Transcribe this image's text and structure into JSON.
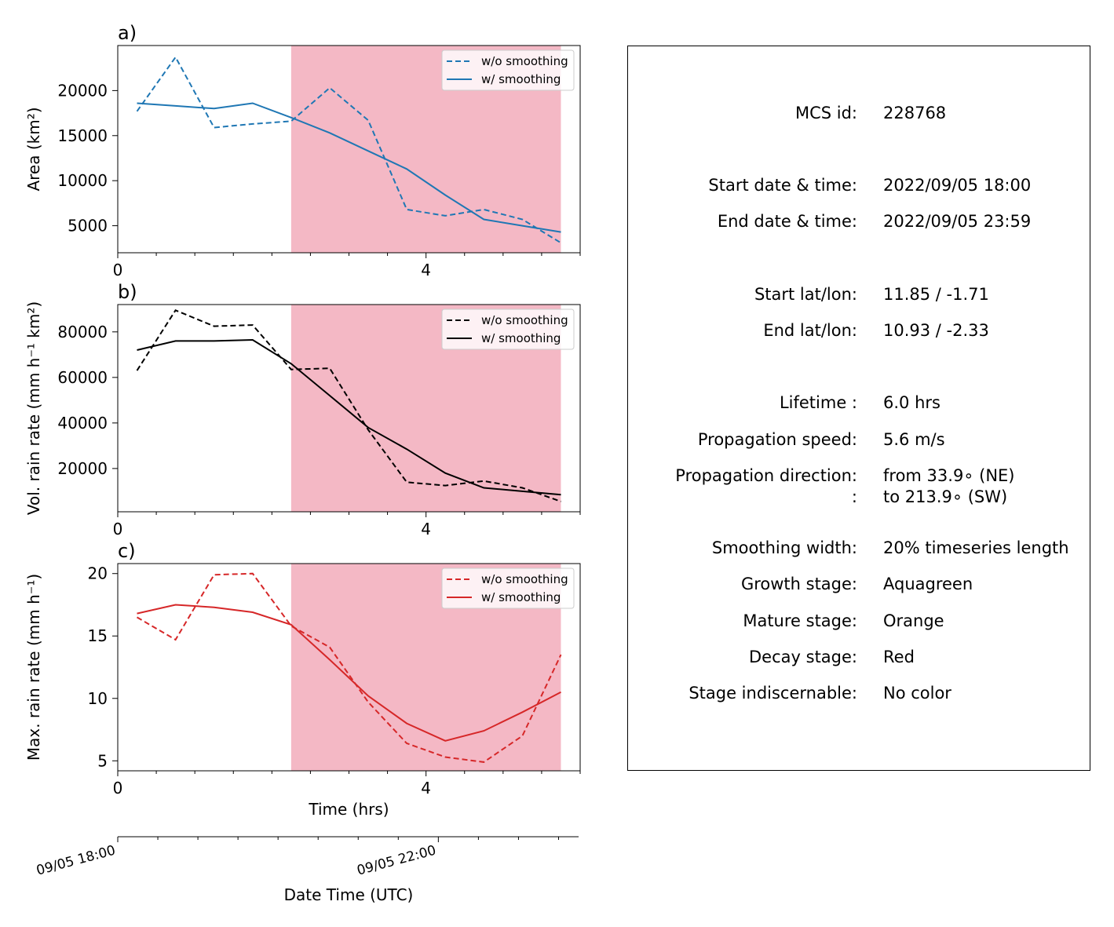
{
  "chart_data": [
    {
      "type": "line",
      "panel_label": "a)",
      "ylabel": "Area  (km²)",
      "xlabel": "",
      "x": [
        0.25,
        0.75,
        1.25,
        1.75,
        2.25,
        2.75,
        3.25,
        3.75,
        4.25,
        4.75,
        5.25,
        5.75
      ],
      "xlim": [
        0,
        6
      ],
      "ylim": [
        2000,
        25000
      ],
      "xticks": [
        "0",
        "4"
      ],
      "yticks": [
        5000,
        10000,
        15000,
        20000
      ],
      "highlight_span": [
        2.25,
        5.75
      ],
      "legend_position": "upper right",
      "series": [
        {
          "name": "w/o smoothing",
          "style": "dashed",
          "color": "#1f77b4",
          "values": [
            17700,
            23700,
            15900,
            16300,
            16600,
            20300,
            16700,
            6800,
            6100,
            6800,
            5700,
            3100
          ]
        },
        {
          "name": "w/ smoothing",
          "style": "solid",
          "color": "#1f77b4",
          "values": [
            18600,
            18300,
            18000,
            18600,
            17000,
            15300,
            13300,
            11300,
            8400,
            5700,
            5000,
            4300
          ]
        }
      ]
    },
    {
      "type": "line",
      "panel_label": "b)",
      "ylabel": "Vol. rain rate (mm h⁻¹ km²)",
      "xlabel": "",
      "x": [
        0.25,
        0.75,
        1.25,
        1.75,
        2.25,
        2.75,
        3.25,
        3.75,
        4.25,
        4.75,
        5.25,
        5.75
      ],
      "xlim": [
        0,
        6
      ],
      "ylim": [
        1000,
        92000
      ],
      "xticks": [
        "0",
        "4"
      ],
      "yticks": [
        20000,
        40000,
        60000,
        80000
      ],
      "highlight_span": [
        2.25,
        5.75
      ],
      "legend_position": "upper right",
      "series": [
        {
          "name": "w/o smoothing",
          "style": "dashed",
          "color": "#000000",
          "values": [
            63000,
            89500,
            82500,
            83000,
            63500,
            64000,
            37000,
            14000,
            12500,
            14500,
            11500,
            5500
          ]
        },
        {
          "name": "w/ smoothing",
          "style": "solid",
          "color": "#000000",
          "values": [
            72000,
            76000,
            76000,
            76500,
            66000,
            52000,
            38000,
            28500,
            18000,
            11500,
            10000,
            8500
          ]
        }
      ]
    },
    {
      "type": "line",
      "panel_label": "c)",
      "ylabel": "Max. rain rate  (mm h⁻¹)",
      "xlabel": "Time (hrs)",
      "x": [
        0.25,
        0.75,
        1.25,
        1.75,
        2.25,
        2.75,
        3.25,
        3.75,
        4.25,
        4.75,
        5.25,
        5.75
      ],
      "xlim": [
        0,
        6
      ],
      "ylim": [
        4.2,
        20.8
      ],
      "xticks": [
        "0",
        "4"
      ],
      "yticks": [
        5,
        10,
        15,
        20
      ],
      "highlight_span": [
        2.25,
        5.75
      ],
      "legend_position": "upper right",
      "series": [
        {
          "name": "w/o smoothing",
          "style": "dashed",
          "color": "#d62728",
          "values": [
            16.5,
            14.7,
            19.9,
            20.0,
            15.8,
            14.1,
            9.7,
            6.4,
            5.3,
            4.9,
            7.0,
            13.5
          ]
        },
        {
          "name": "w/ smoothing",
          "style": "solid",
          "color": "#d62728",
          "values": [
            16.8,
            17.5,
            17.3,
            16.9,
            15.9,
            13.1,
            10.2,
            8.0,
            6.6,
            7.4,
            8.9,
            10.5
          ]
        }
      ]
    }
  ],
  "date_axis": {
    "label": "Date Time (UTC)",
    "ticks": [
      "09/05 18:00",
      "09/05 22:00"
    ]
  },
  "colors": {
    "highlight": "#f4b8c5",
    "blue": "#1f77b4",
    "black": "#000000",
    "red": "#d62728"
  },
  "info": {
    "rows": [
      {
        "label": "MCS id:",
        "value": "228768"
      },
      {
        "label": "Start date & time:",
        "value": "2022/09/05 18:00"
      },
      {
        "label": "End date & time:",
        "value": "2022/09/05 23:59"
      },
      {
        "label": "Start lat/lon:",
        "value": "11.85 / -1.71"
      },
      {
        "label": "End lat/lon:",
        "value": "10.93 / -2.33"
      },
      {
        "label": "Lifetime :",
        "value": "6.0 hrs"
      },
      {
        "label": "Propagation speed:",
        "value": "5.6 m/s"
      },
      {
        "label": "Propagation direction:",
        "value": "from  33.9∘ (NE)"
      },
      {
        "label": ":",
        "value": "to   213.9∘ (SW)"
      },
      {
        "label": "Smoothing width:",
        "value": "20% timeseries length"
      },
      {
        "label": "Growth stage:",
        "value": "Aquagreen"
      },
      {
        "label": "Mature stage:",
        "value": "Orange"
      },
      {
        "label": "Decay stage:",
        "value": "Red"
      },
      {
        "label": "Stage indiscernable:",
        "value": "No color"
      }
    ]
  }
}
